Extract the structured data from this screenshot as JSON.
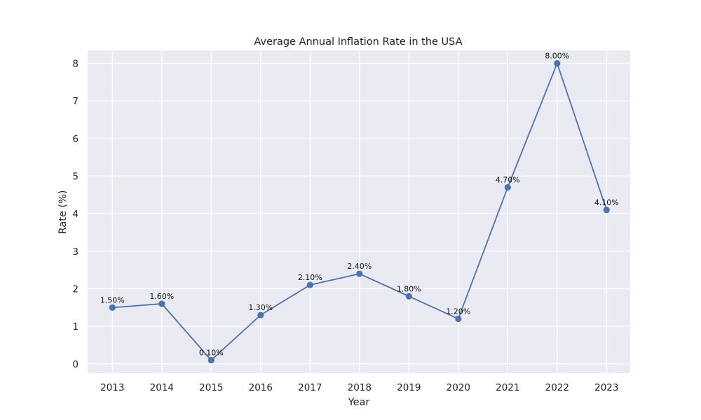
{
  "chart_data": {
    "type": "line",
    "title": "Average Annual Inflation Rate in the USA",
    "xlabel": "Year",
    "ylabel": "Rate (%)",
    "x": [
      "2013",
      "2014",
      "2015",
      "2016",
      "2017",
      "2018",
      "2019",
      "2020",
      "2021",
      "2022",
      "2023"
    ],
    "series": [
      {
        "values": [
          1.5,
          1.6,
          0.1,
          1.3,
          2.1,
          2.4,
          1.8,
          1.2,
          4.7,
          8.0,
          4.1
        ],
        "labels": [
          "1.50%",
          "1.60%",
          "0.10%",
          "1.30%",
          "2.10%",
          "2.40%",
          "1.80%",
          "1.20%",
          "4.70%",
          "8.00%",
          "4.10%"
        ]
      }
    ],
    "yticks": [
      "0",
      "1",
      "2",
      "3",
      "4",
      "5",
      "6",
      "7",
      "8"
    ],
    "ylim": [
      -0.245,
      8.345
    ],
    "grid": true,
    "colors": {
      "line": "#4c72b0",
      "plot_background": "#eaeaf2",
      "grid": "#ffffff"
    }
  }
}
